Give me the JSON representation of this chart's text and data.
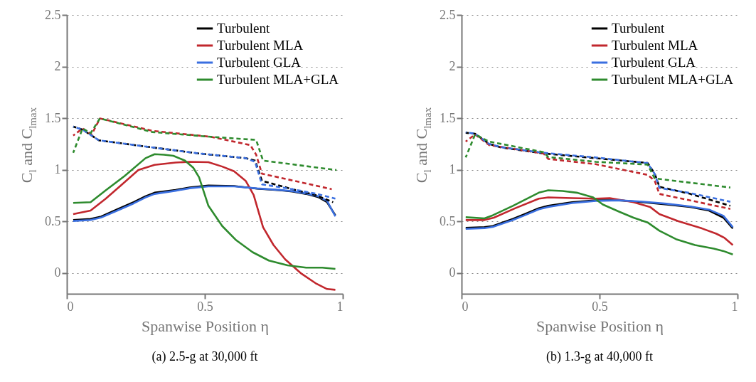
{
  "chart_data": [
    {
      "type": "line",
      "title": "(a) 2.5-g at 30,000 ft",
      "xlabel": "Spanwise Position η",
      "ylabel": "C$_{l}$ and C$_{lmax}$",
      "xlim": [
        0,
        1
      ],
      "xticks": [
        0,
        0.5,
        1
      ],
      "ylim": [
        -0.2,
        2.5
      ],
      "yticks": [
        0,
        0.5,
        1,
        1.5,
        2,
        2.5
      ],
      "grid": "y",
      "legend": "top right",
      "series": [
        {
          "name": "Turbulent",
          "color": "#000000",
          "x": [
            0.023,
            0.086,
            0.124,
            0.183,
            0.242,
            0.285,
            0.318,
            0.394,
            0.445,
            0.513,
            0.606,
            0.69,
            0.774,
            0.817,
            0.867,
            0.91,
            0.943,
            0.973
          ],
          "values": [
            0.514,
            0.525,
            0.548,
            0.618,
            0.687,
            0.744,
            0.779,
            0.806,
            0.829,
            0.848,
            0.843,
            0.818,
            0.802,
            0.79,
            0.767,
            0.737,
            0.687,
            0.56
          ]
        },
        {
          "name": "Turbulent MLA",
          "color": "#c1272d",
          "x": [
            0.023,
            0.086,
            0.141,
            0.2,
            0.259,
            0.318,
            0.394,
            0.445,
            0.513,
            0.563,
            0.606,
            0.648,
            0.677,
            0.711,
            0.749,
            0.791,
            0.85,
            0.901,
            0.943,
            0.973
          ],
          "values": [
            0.571,
            0.606,
            0.721,
            0.859,
            0.998,
            1.048,
            1.071,
            1.078,
            1.074,
            1.032,
            0.986,
            0.894,
            0.756,
            0.445,
            0.272,
            0.134,
            -0.005,
            -0.097,
            -0.154,
            -0.161
          ]
        },
        {
          "name": "Turbulent GLA",
          "color": "#3a6fe0",
          "x": [
            0.023,
            0.086,
            0.124,
            0.183,
            0.242,
            0.285,
            0.318,
            0.394,
            0.445,
            0.513,
            0.606,
            0.69,
            0.774,
            0.817,
            0.867,
            0.91,
            0.943,
            0.973
          ],
          "values": [
            0.505,
            0.515,
            0.538,
            0.606,
            0.675,
            0.733,
            0.767,
            0.798,
            0.822,
            0.84,
            0.84,
            0.82,
            0.805,
            0.793,
            0.772,
            0.745,
            0.7,
            0.55
          ]
        },
        {
          "name": "Turbulent MLA+GLA",
          "color": "#2e8b2e",
          "x": [
            0.023,
            0.086,
            0.141,
            0.209,
            0.285,
            0.318,
            0.352,
            0.386,
            0.428,
            0.458,
            0.479,
            0.513,
            0.563,
            0.614,
            0.673,
            0.732,
            0.8,
            0.867,
            0.926,
            0.973
          ],
          "values": [
            0.68,
            0.687,
            0.802,
            0.94,
            1.113,
            1.152,
            1.147,
            1.136,
            1.09,
            1.021,
            0.929,
            0.652,
            0.456,
            0.318,
            0.203,
            0.122,
            0.076,
            0.053,
            0.053,
            0.041
          ]
        },
        {
          "color": "#000000",
          "line_style": "dashed",
          "x": [
            0.023,
            0.057,
            0.116,
            0.31,
            0.479,
            0.648,
            0.682,
            0.707,
            0.817,
            0.901,
            0.965
          ],
          "values": [
            1.419,
            1.389,
            1.286,
            1.217,
            1.159,
            1.113,
            1.09,
            0.894,
            0.813,
            0.756,
            0.687
          ]
        },
        {
          "color": "#c1272d",
          "line_style": "dashed",
          "x": [
            0.023,
            0.057,
            0.09,
            0.12,
            0.31,
            0.521,
            0.665,
            0.686,
            0.707,
            0.96
          ],
          "values": [
            1.332,
            1.401,
            1.343,
            1.498,
            1.378,
            1.32,
            1.24,
            1.147,
            0.963,
            0.813
          ]
        },
        {
          "color": "#3a6fe0",
          "line_style": "dashed",
          "x": [
            0.023,
            0.057,
            0.116,
            0.31,
            0.479,
            0.648,
            0.682,
            0.707,
            0.817,
            0.901,
            0.973
          ],
          "values": [
            1.419,
            1.389,
            1.286,
            1.217,
            1.159,
            1.113,
            1.078,
            0.86,
            0.813,
            0.77,
            0.721
          ]
        },
        {
          "color": "#2e8b2e",
          "line_style": "dashed",
          "x": [
            0.023,
            0.057,
            0.086,
            0.12,
            0.31,
            0.521,
            0.686,
            0.711,
            0.977
          ],
          "values": [
            1.166,
            1.401,
            1.355,
            1.498,
            1.366,
            1.32,
            1.29,
            1.09,
            0.998
          ]
        }
      ]
    },
    {
      "type": "line",
      "title": "(b) 1.3-g at 40,000 ft",
      "xlabel": "Spanwise Position η",
      "ylabel": "C$_{l}$ and C$_{lmax}$",
      "xlim": [
        0,
        1
      ],
      "xticks": [
        0,
        0.5,
        1
      ],
      "ylim": [
        -0.2,
        2.5
      ],
      "yticks": [
        0,
        0.5,
        1,
        1.5,
        2,
        2.5
      ],
      "grid": "y",
      "legend": "top right",
      "series": [
        {
          "name": "Turbulent",
          "color": "#000000",
          "x": [
            0.015,
            0.083,
            0.113,
            0.186,
            0.229,
            0.28,
            0.314,
            0.4,
            0.486,
            0.572,
            0.657,
            0.743,
            0.829,
            0.897,
            0.949,
            0.983
          ],
          "values": [
            0.438,
            0.445,
            0.456,
            0.525,
            0.571,
            0.629,
            0.652,
            0.687,
            0.705,
            0.705,
            0.687,
            0.664,
            0.641,
            0.606,
            0.537,
            0.433
          ]
        },
        {
          "name": "Turbulent MLA",
          "color": "#c1272d",
          "x": [
            0.015,
            0.083,
            0.117,
            0.195,
            0.28,
            0.314,
            0.4,
            0.486,
            0.537,
            0.623,
            0.683,
            0.717,
            0.786,
            0.871,
            0.923,
            0.953,
            0.983
          ],
          "values": [
            0.514,
            0.514,
            0.537,
            0.629,
            0.721,
            0.733,
            0.726,
            0.721,
            0.726,
            0.687,
            0.641,
            0.571,
            0.502,
            0.433,
            0.382,
            0.341,
            0.272
          ]
        },
        {
          "name": "Turbulent GLA",
          "color": "#3a6fe0",
          "x": [
            0.015,
            0.083,
            0.113,
            0.186,
            0.229,
            0.28,
            0.314,
            0.4,
            0.486,
            0.572,
            0.657,
            0.743,
            0.829,
            0.897,
            0.949,
            0.983
          ],
          "values": [
            0.429,
            0.436,
            0.448,
            0.515,
            0.56,
            0.618,
            0.641,
            0.678,
            0.7,
            0.705,
            0.692,
            0.672,
            0.645,
            0.615,
            0.555,
            0.445
          ]
        },
        {
          "name": "Turbulent MLA+GLA",
          "color": "#2e8b2e",
          "x": [
            0.015,
            0.083,
            0.113,
            0.186,
            0.28,
            0.314,
            0.366,
            0.417,
            0.477,
            0.512,
            0.572,
            0.623,
            0.674,
            0.717,
            0.777,
            0.846,
            0.914,
            0.949,
            0.983
          ],
          "values": [
            0.541,
            0.53,
            0.56,
            0.652,
            0.779,
            0.802,
            0.795,
            0.779,
            0.733,
            0.664,
            0.594,
            0.537,
            0.491,
            0.41,
            0.329,
            0.272,
            0.237,
            0.214,
            0.18
          ]
        },
        {
          "color": "#000000",
          "line_style": "dashed",
          "x": [
            0.015,
            0.049,
            0.1,
            0.143,
            0.297,
            0.486,
            0.674,
            0.7,
            0.717,
            0.829,
            0.974
          ],
          "values": [
            1.359,
            1.35,
            1.251,
            1.217,
            1.159,
            1.113,
            1.067,
            0.963,
            0.836,
            0.767,
            0.652
          ]
        },
        {
          "color": "#c1272d",
          "line_style": "dashed",
          "x": [
            0.015,
            0.049,
            0.1,
            0.297,
            0.314,
            0.486,
            0.674,
            0.7,
            0.717,
            0.974
          ],
          "values": [
            1.274,
            1.343,
            1.24,
            1.159,
            1.106,
            1.055,
            0.952,
            0.894,
            0.767,
            0.622
          ]
        },
        {
          "color": "#3a6fe0",
          "line_style": "dashed",
          "x": [
            0.015,
            0.049,
            0.1,
            0.143,
            0.297,
            0.486,
            0.674,
            0.7,
            0.717,
            0.829,
            0.974
          ],
          "values": [
            1.364,
            1.35,
            1.251,
            1.22,
            1.165,
            1.12,
            1.065,
            0.96,
            0.825,
            0.775,
            0.691
          ]
        },
        {
          "color": "#2e8b2e",
          "line_style": "dashed",
          "x": [
            0.015,
            0.049,
            0.1,
            0.297,
            0.314,
            0.486,
            0.674,
            0.7,
            0.974
          ],
          "values": [
            1.12,
            1.343,
            1.274,
            1.171,
            1.124,
            1.078,
            1.051,
            0.917,
            0.829
          ]
        }
      ]
    }
  ]
}
